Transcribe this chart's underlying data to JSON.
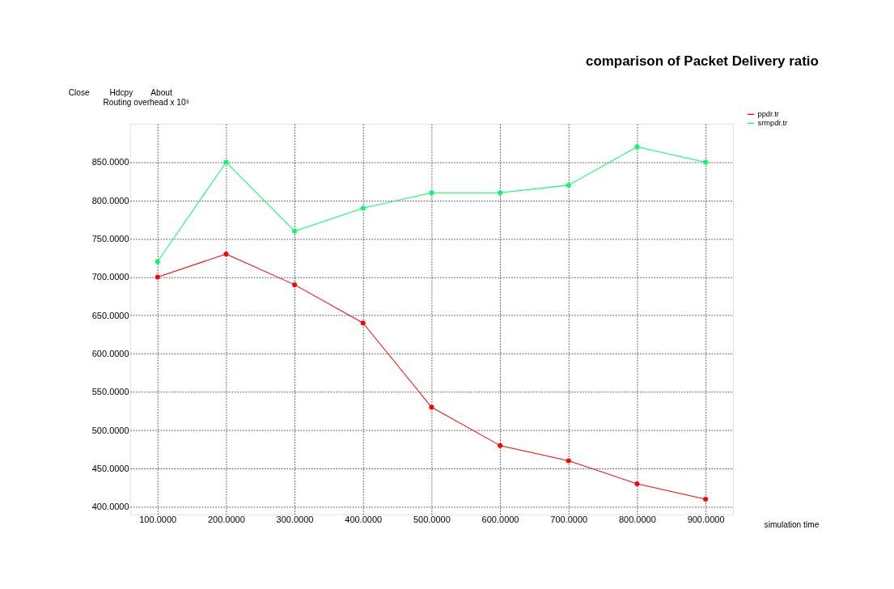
{
  "chart_data": {
    "type": "line",
    "title": "comparison of Packet Delivery ratio",
    "xlabel": "simulation time",
    "ylabel": "Routing overhead x 10³",
    "x": [
      100,
      200,
      300,
      400,
      500,
      600,
      700,
      800,
      900
    ],
    "series": [
      {
        "name": "ppdr.tr",
        "color": "#ff0000",
        "values": [
          700,
          730,
          690,
          640,
          530,
          480,
          460,
          430,
          410
        ]
      },
      {
        "name": "srmpdr.tr",
        "color": "#00ff66",
        "values": [
          720,
          850,
          760,
          790,
          810,
          810,
          820,
          870,
          850
        ]
      }
    ],
    "xlim": [
      60,
      940
    ],
    "ylim": [
      390,
      900
    ],
    "xticks": [
      {
        "value": 100,
        "label": "100.0000"
      },
      {
        "value": 200,
        "label": "200.0000"
      },
      {
        "value": 300,
        "label": "300.0000"
      },
      {
        "value": 400,
        "label": "400.0000"
      },
      {
        "value": 500,
        "label": "500.0000"
      },
      {
        "value": 600,
        "label": "600.0000"
      },
      {
        "value": 700,
        "label": "700.0000"
      },
      {
        "value": 800,
        "label": "800.0000"
      },
      {
        "value": 900,
        "label": "900.0000"
      }
    ],
    "yticks": [
      {
        "value": 400,
        "label": "400.0000"
      },
      {
        "value": 450,
        "label": "450.0000"
      },
      {
        "value": 500,
        "label": "500.0000"
      },
      {
        "value": 550,
        "label": "550.0000"
      },
      {
        "value": 600,
        "label": "600.0000"
      },
      {
        "value": 650,
        "label": "650.0000"
      },
      {
        "value": 700,
        "label": "700.0000"
      },
      {
        "value": 750,
        "label": "750.0000"
      },
      {
        "value": 800,
        "label": "800.0000"
      },
      {
        "value": 850,
        "label": "850.0000"
      }
    ],
    "annotations": [
      "Close",
      "Hdcpy",
      "About"
    ],
    "grid": true,
    "line_style": "solid",
    "marker": "circle",
    "legend": "top right"
  }
}
